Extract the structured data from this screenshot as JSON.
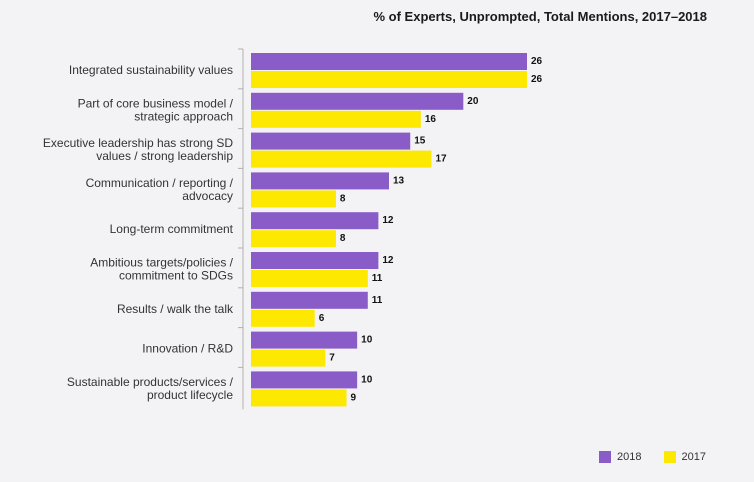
{
  "chart_data": {
    "type": "bar",
    "orientation": "horizontal",
    "title": "% of Experts, Unprompted, Total Mentions, 2017–2018",
    "categories": [
      [
        "Integrated sustainability values"
      ],
      [
        "Part of core business model /",
        "strategic approach"
      ],
      [
        "Executive leadership has strong SD",
        "values / strong leadership"
      ],
      [
        "Communication / reporting /",
        "advocacy"
      ],
      [
        "Long-term commitment"
      ],
      [
        "Ambitious targets/policies /",
        "commitment to SDGs"
      ],
      [
        "Results / walk the talk"
      ],
      [
        "Innovation / R&D"
      ],
      [
        "Sustainable products/services /",
        "product lifecycle"
      ]
    ],
    "series": [
      {
        "name": "2018",
        "color": "#8a5cc7",
        "values": [
          26,
          20,
          15,
          13,
          12,
          12,
          11,
          10,
          10
        ]
      },
      {
        "name": "2017",
        "color": "#fce800",
        "values": [
          26,
          16,
          17,
          8,
          8,
          11,
          6,
          7,
          9
        ]
      }
    ],
    "xlim": [
      0,
      26
    ],
    "grid": false,
    "legend_position": "bottom-right"
  }
}
